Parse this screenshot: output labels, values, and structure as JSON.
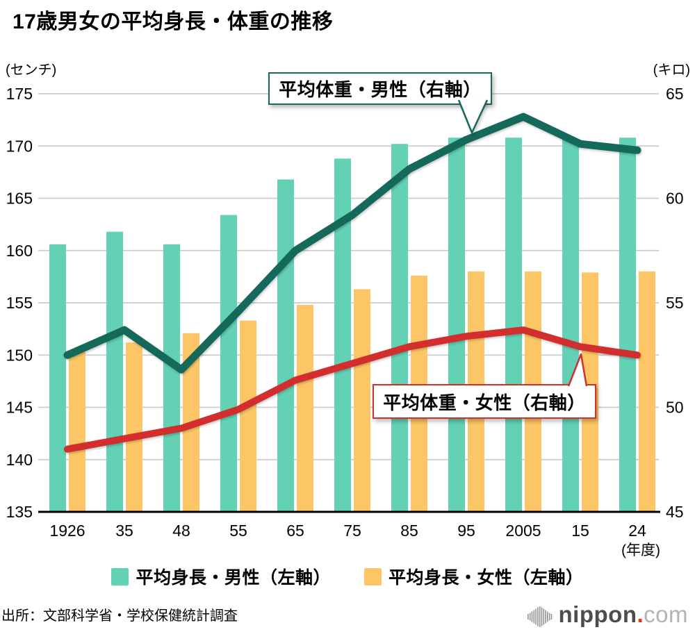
{
  "page": {
    "title": "17歳男女の平均身長・体重の推移",
    "source": "出所：文部科学省・学校保健統計調査",
    "logo": {
      "nippon": "nippon",
      "dot": ".",
      "com": "com"
    }
  },
  "chart_data": {
    "type": "combo_bar_line",
    "title": "17歳男女の平均身長・体重の推移",
    "categories": [
      "1926",
      "35",
      "48",
      "55",
      "65",
      "75",
      "85",
      "95",
      "2005",
      "15",
      "24"
    ],
    "x_axis_suffix": "(年度)",
    "left_axis": {
      "unit": "(センチ)",
      "label": "センチ",
      "min": 135,
      "max": 175,
      "ticks": [
        175,
        170,
        165,
        160,
        155,
        150,
        145,
        140,
        135
      ]
    },
    "right_axis": {
      "unit": "(キロ)",
      "label": "キロ",
      "min": 45,
      "max": 65,
      "ticks": [
        65,
        60,
        55,
        50,
        45
      ]
    },
    "grid": true,
    "legend_position": "bottom",
    "series": [
      {
        "name": "平均身長・男性（左軸）",
        "type": "bar",
        "axis": "left",
        "color": "#62d1b4",
        "values": [
          160.6,
          161.8,
          160.6,
          163.4,
          166.8,
          168.8,
          170.2,
          170.8,
          170.8,
          170.7,
          170.8
        ]
      },
      {
        "name": "平均身長・女性（左軸）",
        "type": "bar",
        "axis": "left",
        "color": "#fcc666",
        "values": [
          150.3,
          151.2,
          152.1,
          153.3,
          154.8,
          156.3,
          157.6,
          158.0,
          158.0,
          157.9,
          158.0
        ]
      },
      {
        "name": "平均体重・男性（右軸）",
        "type": "line",
        "axis": "right",
        "color": "#15695a",
        "label_style": "callout",
        "values": [
          52.5,
          53.7,
          51.8,
          54.6,
          57.5,
          59.2,
          61.4,
          62.8,
          63.9,
          62.6,
          62.3
        ]
      },
      {
        "name": "平均体重・女性（右軸）",
        "type": "line",
        "axis": "right",
        "color": "#d32e2e",
        "label_style": "callout",
        "values": [
          48.0,
          48.5,
          49.0,
          49.9,
          51.3,
          52.1,
          52.9,
          53.4,
          53.7,
          52.9,
          52.5
        ]
      }
    ]
  }
}
